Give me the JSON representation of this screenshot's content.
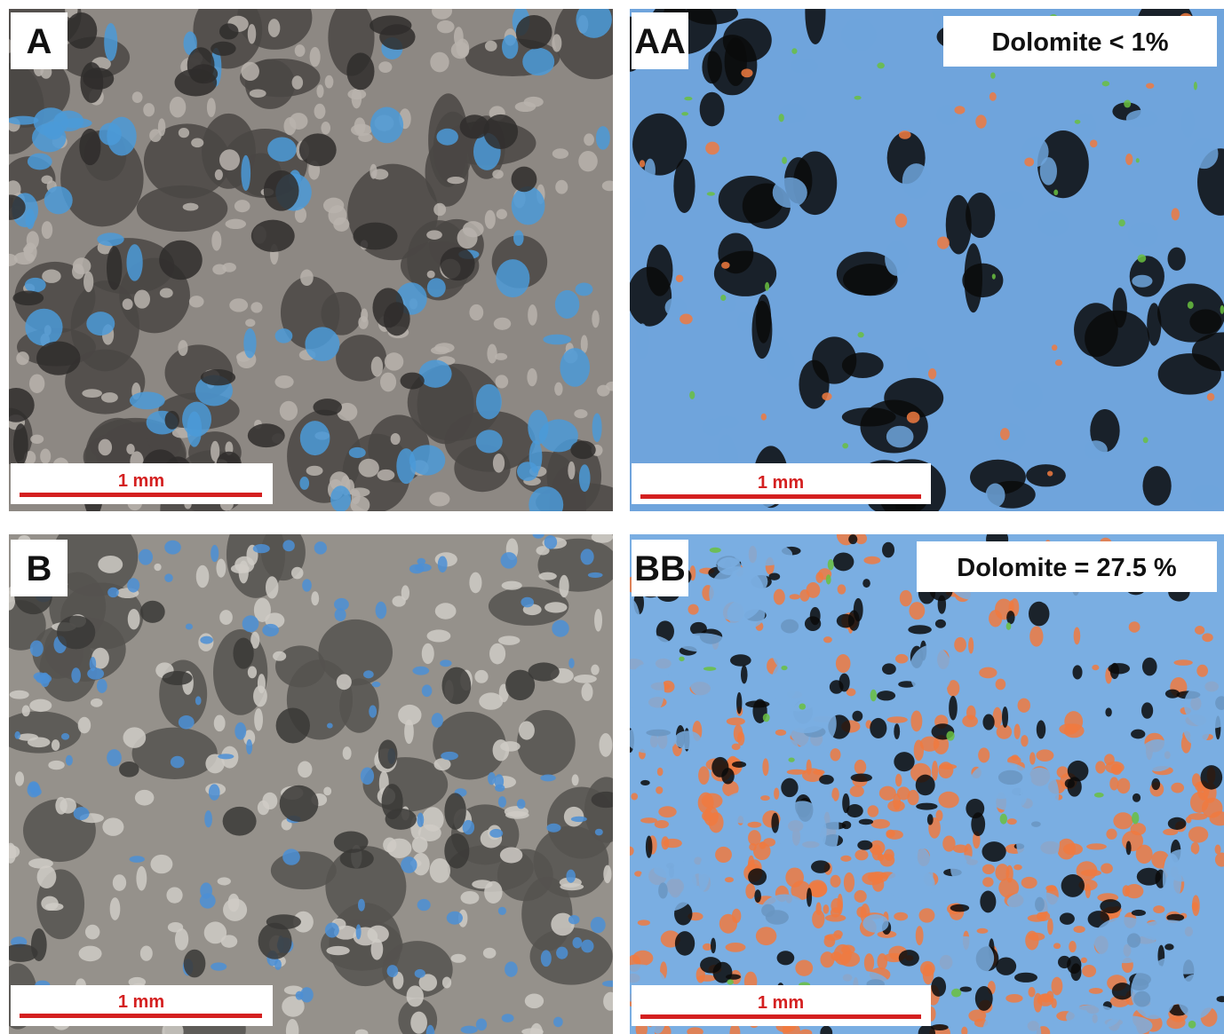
{
  "panels": [
    {
      "label": "A",
      "scale_bar": "1 mm"
    },
    {
      "label": "AA",
      "scale_bar": "1 mm",
      "annotation": "Dolomite < 1%"
    },
    {
      "label": "B",
      "scale_bar": "1 mm"
    },
    {
      "label": "BB",
      "scale_bar": "1 mm",
      "annotation": "Dolomite = 27.5 %"
    }
  ]
}
